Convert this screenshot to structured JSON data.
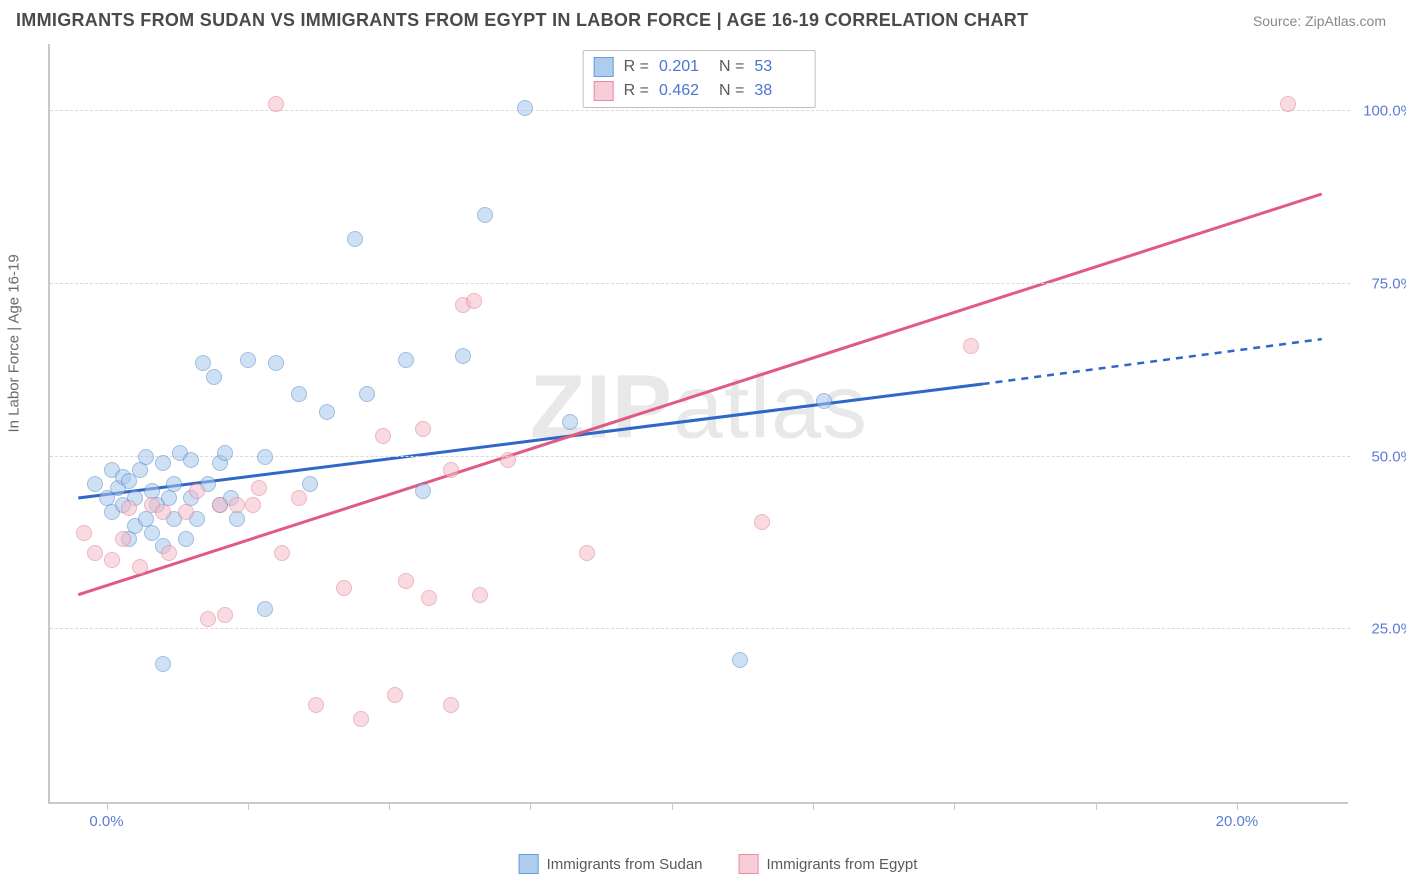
{
  "header": {
    "title": "IMMIGRANTS FROM SUDAN VS IMMIGRANTS FROM EGYPT IN LABOR FORCE | AGE 16-19 CORRELATION CHART",
    "source": "Source: ZipAtlas.com"
  },
  "chart": {
    "type": "scatter",
    "ylabel": "In Labor Force | Age 16-19",
    "watermark": "ZIPatlas",
    "x_domain": [
      -1,
      22
    ],
    "y_domain": [
      0,
      110
    ],
    "x_ticks": [
      0,
      20
    ],
    "x_tick_labels": [
      "0.0%",
      "20.0%"
    ],
    "y_ticks": [
      25,
      50,
      75,
      100
    ],
    "y_tick_labels": [
      "25.0%",
      "50.0%",
      "75.0%",
      "100.0%"
    ],
    "bottom_ticks_minor": [
      2.5,
      5,
      7.5,
      10,
      12.5,
      15,
      17.5
    ],
    "background_color": "#ffffff",
    "grid_color": "#d8d8d8",
    "series": [
      {
        "name": "Immigrants from Sudan",
        "fill": "#a7c8ec",
        "fill_opacity": 0.55,
        "stroke": "#5487c8",
        "swatch_fill": "#aeccee",
        "swatch_stroke": "#6a9cd8",
        "R": "0.201",
        "N": "53",
        "trend_color": "#2e66c9",
        "trend_start": {
          "x": -0.5,
          "y": 44
        },
        "trend_solid_end": {
          "x": 15.5,
          "y": 60.5
        },
        "trend_dash_end": {
          "x": 21.5,
          "y": 67
        },
        "points": [
          {
            "x": -0.2,
            "y": 46
          },
          {
            "x": 0,
            "y": 44
          },
          {
            "x": 0.1,
            "y": 48
          },
          {
            "x": 0.1,
            "y": 42
          },
          {
            "x": 0.2,
            "y": 45.5
          },
          {
            "x": 0.3,
            "y": 47
          },
          {
            "x": 0.3,
            "y": 43
          },
          {
            "x": 0.4,
            "y": 38
          },
          {
            "x": 0.4,
            "y": 46.5
          },
          {
            "x": 0.5,
            "y": 44
          },
          {
            "x": 0.5,
            "y": 40
          },
          {
            "x": 0.6,
            "y": 48
          },
          {
            "x": 0.7,
            "y": 50
          },
          {
            "x": 0.7,
            "y": 41
          },
          {
            "x": 0.8,
            "y": 45
          },
          {
            "x": 0.8,
            "y": 39
          },
          {
            "x": 0.9,
            "y": 43
          },
          {
            "x": 1.0,
            "y": 49
          },
          {
            "x": 1.0,
            "y": 37
          },
          {
            "x": 1.1,
            "y": 44
          },
          {
            "x": 1.2,
            "y": 46
          },
          {
            "x": 1.2,
            "y": 41
          },
          {
            "x": 1.3,
            "y": 50.5
          },
          {
            "x": 1.4,
            "y": 38
          },
          {
            "x": 1.5,
            "y": 44
          },
          {
            "x": 1.5,
            "y": 49.5
          },
          {
            "x": 1.6,
            "y": 41
          },
          {
            "x": 1.7,
            "y": 63.5
          },
          {
            "x": 1.8,
            "y": 46
          },
          {
            "x": 1.9,
            "y": 61.5
          },
          {
            "x": 2.0,
            "y": 49
          },
          {
            "x": 2.0,
            "y": 43
          },
          {
            "x": 2.1,
            "y": 50.5
          },
          {
            "x": 2.2,
            "y": 44
          },
          {
            "x": 2.3,
            "y": 41
          },
          {
            "x": 2.5,
            "y": 64
          },
          {
            "x": 2.8,
            "y": 50
          },
          {
            "x": 3.0,
            "y": 63.5
          },
          {
            "x": 3.4,
            "y": 59
          },
          {
            "x": 3.6,
            "y": 46
          },
          {
            "x": 3.9,
            "y": 56.5
          },
          {
            "x": 4.4,
            "y": 81.5
          },
          {
            "x": 4.6,
            "y": 59
          },
          {
            "x": 5.3,
            "y": 64
          },
          {
            "x": 5.6,
            "y": 45
          },
          {
            "x": 6.3,
            "y": 64.5
          },
          {
            "x": 6.7,
            "y": 85
          },
          {
            "x": 8.2,
            "y": 55
          },
          {
            "x": 1.0,
            "y": 20
          },
          {
            "x": 11.2,
            "y": 20.5
          },
          {
            "x": 12.7,
            "y": 58
          },
          {
            "x": 7.4,
            "y": 100.5
          },
          {
            "x": 2.8,
            "y": 28
          }
        ]
      },
      {
        "name": "Immigrants from Egypt",
        "fill": "#f3bcc8",
        "fill_opacity": 0.55,
        "stroke": "#dd7a97",
        "swatch_fill": "#f6cdd6",
        "swatch_stroke": "#e88ba4",
        "R": "0.462",
        "N": "38",
        "trend_color": "#e05a84",
        "trend_start": {
          "x": -0.5,
          "y": 30
        },
        "trend_solid_end": {
          "x": 21.5,
          "y": 88
        },
        "trend_dash_end": null,
        "points": [
          {
            "x": -0.4,
            "y": 39
          },
          {
            "x": -0.2,
            "y": 36
          },
          {
            "x": 0.1,
            "y": 35
          },
          {
            "x": 0.3,
            "y": 38
          },
          {
            "x": 0.4,
            "y": 42.5
          },
          {
            "x": 0.6,
            "y": 34
          },
          {
            "x": 0.8,
            "y": 43
          },
          {
            "x": 1.0,
            "y": 42
          },
          {
            "x": 1.1,
            "y": 36
          },
          {
            "x": 1.4,
            "y": 42
          },
          {
            "x": 1.6,
            "y": 45
          },
          {
            "x": 1.8,
            "y": 26.5
          },
          {
            "x": 2.0,
            "y": 43
          },
          {
            "x": 2.1,
            "y": 27
          },
          {
            "x": 2.3,
            "y": 43
          },
          {
            "x": 2.6,
            "y": 43
          },
          {
            "x": 2.7,
            "y": 45.5
          },
          {
            "x": 3.0,
            "y": 101
          },
          {
            "x": 3.1,
            "y": 36
          },
          {
            "x": 3.4,
            "y": 44
          },
          {
            "x": 3.7,
            "y": 14
          },
          {
            "x": 4.2,
            "y": 31
          },
          {
            "x": 4.5,
            "y": 12
          },
          {
            "x": 4.9,
            "y": 53
          },
          {
            "x": 5.1,
            "y": 15.5
          },
          {
            "x": 5.3,
            "y": 32
          },
          {
            "x": 5.6,
            "y": 54
          },
          {
            "x": 5.7,
            "y": 29.5
          },
          {
            "x": 6.1,
            "y": 14
          },
          {
            "x": 6.1,
            "y": 48
          },
          {
            "x": 6.3,
            "y": 72
          },
          {
            "x": 6.5,
            "y": 72.5
          },
          {
            "x": 6.6,
            "y": 30
          },
          {
            "x": 7.1,
            "y": 49.5
          },
          {
            "x": 8.5,
            "y": 36
          },
          {
            "x": 11.6,
            "y": 40.5
          },
          {
            "x": 15.3,
            "y": 66
          },
          {
            "x": 20.9,
            "y": 101
          }
        ]
      }
    ]
  },
  "stats_labels": {
    "R": "R =",
    "N": "N ="
  },
  "legend": {
    "sudan": "Immigrants from Sudan",
    "egypt": "Immigrants from Egypt"
  }
}
